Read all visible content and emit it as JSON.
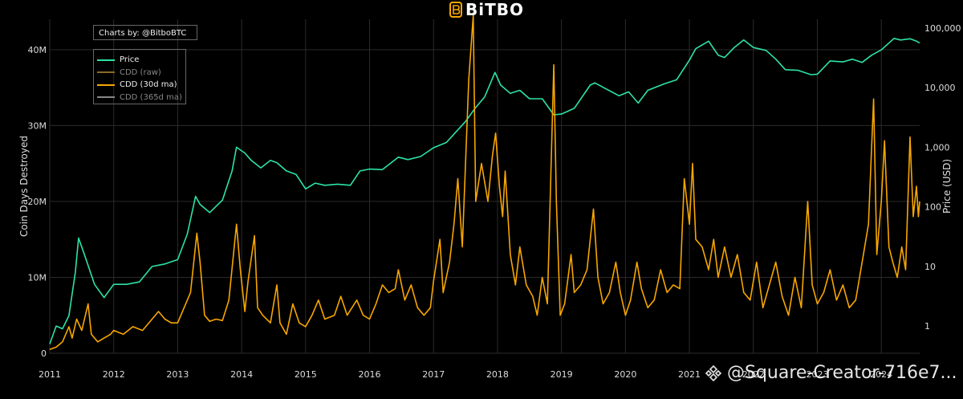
{
  "brand": {
    "name": "BiTBO"
  },
  "credit": "Charts by: @BitboBTC",
  "watermark": "@Square-Creator-716e7...",
  "colors": {
    "price": "#2de3a3",
    "cdd": "#f7a600",
    "cdd_raw": "#8a6a26",
    "cdd_365": "#888888",
    "grid": "#2b2b2b"
  },
  "chart_data": {
    "type": "line",
    "title": "",
    "xlabel": "",
    "ylabel": "Coin Days Destroyed",
    "y2label": "Price (USD)",
    "y2scale": "log",
    "legend_position": "top-left",
    "grid": true,
    "xlim": [
      2011.0,
      2024.6
    ],
    "ylim": [
      0,
      44000000
    ],
    "y2lim": [
      0.35,
      140000
    ],
    "x_ticks": [
      "2011",
      "2012",
      "2013",
      "2014",
      "2015",
      "2016",
      "2017",
      "2018",
      "2019",
      "2020",
      "2021",
      "2022",
      "2023",
      "2024"
    ],
    "y_ticks": [
      {
        "value": 0,
        "label": "0"
      },
      {
        "value": 10000000,
        "label": "10M"
      },
      {
        "value": 20000000,
        "label": "20M"
      },
      {
        "value": 30000000,
        "label": "30M"
      },
      {
        "value": 40000000,
        "label": "40M"
      }
    ],
    "y2_ticks": [
      {
        "value": 1,
        "label": "1"
      },
      {
        "value": 10,
        "label": "10"
      },
      {
        "value": 100,
        "label": "100"
      },
      {
        "value": 1000,
        "label": "1,000"
      },
      {
        "value": 10000,
        "label": "10,000"
      },
      {
        "value": 100000,
        "label": "100,000"
      }
    ],
    "series": [
      {
        "name": "Price",
        "axis": "y2",
        "visible": true,
        "points": [
          [
            2011.0,
            0.5
          ],
          [
            2011.1,
            1.0
          ],
          [
            2011.2,
            0.9
          ],
          [
            2011.3,
            1.5
          ],
          [
            2011.4,
            8
          ],
          [
            2011.45,
            30
          ],
          [
            2011.55,
            15
          ],
          [
            2011.7,
            5
          ],
          [
            2011.85,
            3
          ],
          [
            2012.0,
            5
          ],
          [
            2012.2,
            5
          ],
          [
            2012.4,
            5.5
          ],
          [
            2012.6,
            10
          ],
          [
            2012.8,
            11
          ],
          [
            2013.0,
            13
          ],
          [
            2013.15,
            35
          ],
          [
            2013.28,
            150
          ],
          [
            2013.35,
            110
          ],
          [
            2013.5,
            80
          ],
          [
            2013.7,
            130
          ],
          [
            2013.85,
            400
          ],
          [
            2013.92,
            1000
          ],
          [
            2014.05,
            800
          ],
          [
            2014.15,
            600
          ],
          [
            2014.3,
            450
          ],
          [
            2014.45,
            600
          ],
          [
            2014.55,
            550
          ],
          [
            2014.7,
            400
          ],
          [
            2014.85,
            350
          ],
          [
            2015.0,
            200
          ],
          [
            2015.15,
            250
          ],
          [
            2015.3,
            230
          ],
          [
            2015.5,
            240
          ],
          [
            2015.7,
            230
          ],
          [
            2015.85,
            400
          ],
          [
            2016.0,
            430
          ],
          [
            2016.2,
            420
          ],
          [
            2016.45,
            680
          ],
          [
            2016.6,
            620
          ],
          [
            2016.8,
            700
          ],
          [
            2017.0,
            980
          ],
          [
            2017.2,
            1200
          ],
          [
            2017.35,
            1800
          ],
          [
            2017.5,
            2700
          ],
          [
            2017.65,
            4500
          ],
          [
            2017.8,
            7000
          ],
          [
            2017.96,
            18000
          ],
          [
            2018.05,
            11000
          ],
          [
            2018.2,
            8000
          ],
          [
            2018.35,
            9000
          ],
          [
            2018.5,
            6500
          ],
          [
            2018.7,
            6500
          ],
          [
            2018.88,
            3500
          ],
          [
            2019.0,
            3600
          ],
          [
            2019.2,
            4500
          ],
          [
            2019.45,
            11000
          ],
          [
            2019.52,
            12000
          ],
          [
            2019.7,
            9500
          ],
          [
            2019.9,
            7300
          ],
          [
            2020.05,
            8500
          ],
          [
            2020.2,
            5500
          ],
          [
            2020.35,
            9000
          ],
          [
            2020.6,
            11500
          ],
          [
            2020.8,
            13500
          ],
          [
            2021.0,
            29000
          ],
          [
            2021.1,
            45000
          ],
          [
            2021.3,
            60000
          ],
          [
            2021.45,
            35000
          ],
          [
            2021.55,
            32000
          ],
          [
            2021.7,
            47000
          ],
          [
            2021.85,
            63000
          ],
          [
            2022.0,
            47000
          ],
          [
            2022.2,
            42000
          ],
          [
            2022.35,
            30000
          ],
          [
            2022.5,
            20000
          ],
          [
            2022.7,
            19500
          ],
          [
            2022.9,
            16500
          ],
          [
            2023.0,
            16800
          ],
          [
            2023.2,
            28000
          ],
          [
            2023.4,
            27000
          ],
          [
            2023.55,
            30000
          ],
          [
            2023.7,
            26500
          ],
          [
            2023.85,
            35000
          ],
          [
            2024.0,
            43000
          ],
          [
            2024.2,
            67000
          ],
          [
            2024.3,
            63000
          ],
          [
            2024.45,
            66000
          ],
          [
            2024.55,
            60000
          ],
          [
            2024.6,
            56000
          ]
        ]
      },
      {
        "name": "CDD (raw)",
        "axis": "y",
        "visible": false
      },
      {
        "name": "CDD (30d ma)",
        "axis": "y",
        "visible": true,
        "points": [
          [
            2011.0,
            500000
          ],
          [
            2011.1,
            800000
          ],
          [
            2011.2,
            1500000
          ],
          [
            2011.3,
            3500000
          ],
          [
            2011.35,
            2000000
          ],
          [
            2011.42,
            4500000
          ],
          [
            2011.5,
            3000000
          ],
          [
            2011.6,
            6500000
          ],
          [
            2011.65,
            2500000
          ],
          [
            2011.75,
            1500000
          ],
          [
            2011.85,
            2000000
          ],
          [
            2011.95,
            2500000
          ],
          [
            2012.0,
            3000000
          ],
          [
            2012.15,
            2500000
          ],
          [
            2012.3,
            3500000
          ],
          [
            2012.45,
            3000000
          ],
          [
            2012.6,
            4500000
          ],
          [
            2012.7,
            5500000
          ],
          [
            2012.8,
            4500000
          ],
          [
            2012.9,
            4000000
          ],
          [
            2013.0,
            4000000
          ],
          [
            2013.1,
            6000000
          ],
          [
            2013.2,
            8000000
          ],
          [
            2013.3,
            15800000
          ],
          [
            2013.35,
            12000000
          ],
          [
            2013.42,
            5000000
          ],
          [
            2013.5,
            4200000
          ],
          [
            2013.6,
            4500000
          ],
          [
            2013.7,
            4300000
          ],
          [
            2013.8,
            7000000
          ],
          [
            2013.92,
            17000000
          ],
          [
            2013.98,
            11000000
          ],
          [
            2014.05,
            5500000
          ],
          [
            2014.1,
            9500000
          ],
          [
            2014.2,
            15500000
          ],
          [
            2014.25,
            6000000
          ],
          [
            2014.33,
            5000000
          ],
          [
            2014.45,
            4000000
          ],
          [
            2014.55,
            9000000
          ],
          [
            2014.6,
            4000000
          ],
          [
            2014.7,
            2500000
          ],
          [
            2014.8,
            6500000
          ],
          [
            2014.9,
            4000000
          ],
          [
            2015.0,
            3500000
          ],
          [
            2015.1,
            5000000
          ],
          [
            2015.2,
            7000000
          ],
          [
            2015.3,
            4500000
          ],
          [
            2015.45,
            5000000
          ],
          [
            2015.55,
            7500000
          ],
          [
            2015.65,
            5000000
          ],
          [
            2015.8,
            7000000
          ],
          [
            2015.9,
            5000000
          ],
          [
            2016.0,
            4500000
          ],
          [
            2016.1,
            6500000
          ],
          [
            2016.2,
            9000000
          ],
          [
            2016.3,
            8000000
          ],
          [
            2016.4,
            8500000
          ],
          [
            2016.45,
            11000000
          ],
          [
            2016.55,
            7000000
          ],
          [
            2016.65,
            9000000
          ],
          [
            2016.75,
            6000000
          ],
          [
            2016.85,
            5000000
          ],
          [
            2016.95,
            6000000
          ],
          [
            2017.0,
            9500000
          ],
          [
            2017.1,
            15000000
          ],
          [
            2017.15,
            8000000
          ],
          [
            2017.25,
            12000000
          ],
          [
            2017.32,
            17000000
          ],
          [
            2017.38,
            23000000
          ],
          [
            2017.45,
            14000000
          ],
          [
            2017.55,
            36000000
          ],
          [
            2017.62,
            44500000
          ],
          [
            2017.66,
            20000000
          ],
          [
            2017.75,
            25000000
          ],
          [
            2017.85,
            20000000
          ],
          [
            2017.92,
            26000000
          ],
          [
            2017.97,
            29000000
          ],
          [
            2018.03,
            22000000
          ],
          [
            2018.08,
            18000000
          ],
          [
            2018.12,
            24000000
          ],
          [
            2018.2,
            13000000
          ],
          [
            2018.28,
            9000000
          ],
          [
            2018.35,
            14000000
          ],
          [
            2018.45,
            9000000
          ],
          [
            2018.55,
            7500000
          ],
          [
            2018.62,
            5000000
          ],
          [
            2018.7,
            10000000
          ],
          [
            2018.78,
            6500000
          ],
          [
            2018.88,
            38000000
          ],
          [
            2018.92,
            20000000
          ],
          [
            2018.98,
            5000000
          ],
          [
            2019.05,
            6500000
          ],
          [
            2019.15,
            13000000
          ],
          [
            2019.2,
            8000000
          ],
          [
            2019.3,
            9000000
          ],
          [
            2019.4,
            11000000
          ],
          [
            2019.5,
            19000000
          ],
          [
            2019.57,
            10000000
          ],
          [
            2019.65,
            6500000
          ],
          [
            2019.75,
            8000000
          ],
          [
            2019.85,
            12000000
          ],
          [
            2019.92,
            8000000
          ],
          [
            2020.0,
            5000000
          ],
          [
            2020.08,
            7000000
          ],
          [
            2020.18,
            12000000
          ],
          [
            2020.25,
            8500000
          ],
          [
            2020.35,
            6000000
          ],
          [
            2020.45,
            7000000
          ],
          [
            2020.55,
            11000000
          ],
          [
            2020.65,
            8000000
          ],
          [
            2020.75,
            9000000
          ],
          [
            2020.85,
            8500000
          ],
          [
            2020.92,
            23000000
          ],
          [
            2021.0,
            17000000
          ],
          [
            2021.05,
            25000000
          ],
          [
            2021.1,
            15000000
          ],
          [
            2021.2,
            14000000
          ],
          [
            2021.3,
            11000000
          ],
          [
            2021.38,
            15000000
          ],
          [
            2021.45,
            10000000
          ],
          [
            2021.55,
            14000000
          ],
          [
            2021.65,
            10000000
          ],
          [
            2021.75,
            13000000
          ],
          [
            2021.85,
            8000000
          ],
          [
            2021.95,
            7000000
          ],
          [
            2022.05,
            12000000
          ],
          [
            2022.15,
            6000000
          ],
          [
            2022.25,
            9000000
          ],
          [
            2022.35,
            12000000
          ],
          [
            2022.45,
            7500000
          ],
          [
            2022.55,
            5000000
          ],
          [
            2022.65,
            10000000
          ],
          [
            2022.75,
            6000000
          ],
          [
            2022.85,
            20000000
          ],
          [
            2022.92,
            9000000
          ],
          [
            2023.0,
            6500000
          ],
          [
            2023.1,
            8000000
          ],
          [
            2023.2,
            11000000
          ],
          [
            2023.3,
            7000000
          ],
          [
            2023.4,
            9000000
          ],
          [
            2023.5,
            6000000
          ],
          [
            2023.6,
            7000000
          ],
          [
            2023.72,
            13000000
          ],
          [
            2023.8,
            17000000
          ],
          [
            2023.88,
            33500000
          ],
          [
            2023.93,
            13000000
          ],
          [
            2024.0,
            20000000
          ],
          [
            2024.05,
            28000000
          ],
          [
            2024.12,
            14000000
          ],
          [
            2024.18,
            12000000
          ],
          [
            2024.25,
            10000000
          ],
          [
            2024.32,
            14000000
          ],
          [
            2024.38,
            11000000
          ],
          [
            2024.45,
            28500000
          ],
          [
            2024.5,
            18000000
          ],
          [
            2024.55,
            22000000
          ],
          [
            2024.58,
            18000000
          ],
          [
            2024.6,
            20000000
          ]
        ]
      },
      {
        "name": "CDD (365d ma)",
        "axis": "y",
        "visible": false
      }
    ]
  }
}
